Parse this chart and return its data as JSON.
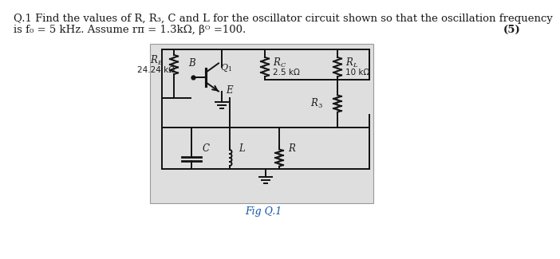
{
  "title_line1": "Q.1 Find the values of R, R₃, C and L for the oscillator circuit shown so that the oscillation frequency",
  "title_line2": "is f₀ = 5 kHz. Assume rπ = 1.3kΩ, βᴼ =100.",
  "marks": "(5)",
  "fig_label": "Fig Q.1",
  "bg_color": "#ffffff",
  "text_color": "#1a1a1a",
  "circuit_bg": "#e0e0e0",
  "title_fontsize": 9.5,
  "RB_label": "$R_B$",
  "RB_value": "24.24 kΩ",
  "Q1_label": "$Q_1$",
  "RC_label": "$R_C$",
  "RC_value": "2.5 kΩ",
  "RL_label": "$R_L$",
  "RL_value": "10 kΩ",
  "R3_label": "$R_3$",
  "C_label": "$C$",
  "L_label": "$L$",
  "R_label": "$R$",
  "B_label": "B",
  "E_label": "E"
}
